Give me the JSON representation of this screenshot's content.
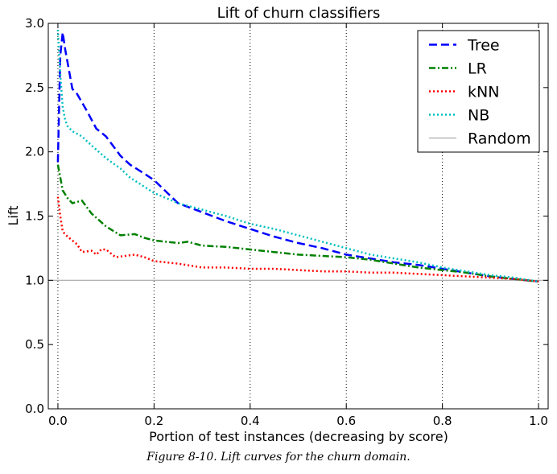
{
  "caption": "Figure 8-10. Lift curves for the churn domain.",
  "chart_data": {
    "type": "line",
    "title": "Lift of churn classifiers",
    "xlabel": "Portion of test instances (decreasing by score)",
    "ylabel": "Lift",
    "xlim": [
      -0.02,
      1.02
    ],
    "ylim": [
      0.0,
      3.0
    ],
    "xticks": [
      0.0,
      0.2,
      0.4,
      0.6,
      0.8,
      1.0
    ],
    "xtick_labels": [
      "0.0",
      "0.2",
      "0.4",
      "0.6",
      "0.8",
      "1.0"
    ],
    "yticks": [
      0.0,
      0.5,
      1.0,
      1.5,
      2.0,
      2.5,
      3.0
    ],
    "ytick_labels": [
      "0.0",
      "0.5",
      "1.0",
      "1.5",
      "2.0",
      "2.5",
      "3.0"
    ],
    "grid": "vertical dotted at x ticks",
    "legend_position": "top-right",
    "series": [
      {
        "name": "Tree",
        "color": "#0000ff",
        "style": "dashed",
        "x": [
          0.0,
          0.005,
          0.01,
          0.015,
          0.03,
          0.04,
          0.06,
          0.08,
          0.1,
          0.13,
          0.15,
          0.18,
          0.2,
          0.25,
          0.3,
          0.35,
          0.4,
          0.45,
          0.5,
          0.55,
          0.6,
          0.65,
          0.7,
          0.75,
          0.8,
          0.85,
          0.9,
          0.95,
          1.0
        ],
        "y": [
          1.92,
          2.75,
          2.93,
          2.8,
          2.49,
          2.45,
          2.32,
          2.18,
          2.12,
          1.97,
          1.9,
          1.83,
          1.78,
          1.6,
          1.53,
          1.46,
          1.4,
          1.34,
          1.29,
          1.25,
          1.2,
          1.17,
          1.14,
          1.12,
          1.09,
          1.06,
          1.03,
          1.01,
          0.99
        ]
      },
      {
        "name": "LR",
        "color": "#008000",
        "style": "dashdot",
        "x": [
          0.0,
          0.005,
          0.01,
          0.02,
          0.03,
          0.05,
          0.07,
          0.1,
          0.13,
          0.16,
          0.18,
          0.2,
          0.25,
          0.27,
          0.3,
          0.35,
          0.4,
          0.45,
          0.5,
          0.55,
          0.6,
          0.65,
          0.7,
          0.75,
          0.8,
          0.85,
          0.9,
          0.95,
          1.0
        ],
        "y": [
          1.9,
          1.8,
          1.7,
          1.64,
          1.6,
          1.62,
          1.52,
          1.42,
          1.35,
          1.36,
          1.33,
          1.31,
          1.29,
          1.3,
          1.27,
          1.26,
          1.24,
          1.22,
          1.2,
          1.19,
          1.18,
          1.16,
          1.13,
          1.1,
          1.08,
          1.06,
          1.03,
          1.01,
          0.99
        ]
      },
      {
        "name": "kNN",
        "color": "#ff0000",
        "style": "dotted",
        "x": [
          0.0,
          0.005,
          0.01,
          0.02,
          0.04,
          0.05,
          0.07,
          0.08,
          0.09,
          0.1,
          0.12,
          0.14,
          0.16,
          0.18,
          0.2,
          0.25,
          0.3,
          0.35,
          0.4,
          0.45,
          0.5,
          0.55,
          0.6,
          0.65,
          0.7,
          0.75,
          0.8,
          0.85,
          0.9,
          0.95,
          1.0
        ],
        "y": [
          1.65,
          1.5,
          1.38,
          1.34,
          1.28,
          1.22,
          1.23,
          1.2,
          1.24,
          1.24,
          1.18,
          1.19,
          1.2,
          1.18,
          1.15,
          1.13,
          1.1,
          1.1,
          1.09,
          1.09,
          1.08,
          1.07,
          1.07,
          1.06,
          1.06,
          1.05,
          1.04,
          1.03,
          1.02,
          1.01,
          0.99
        ]
      },
      {
        "name": "NB",
        "color": "#00bfbf",
        "style": "dotted",
        "x": [
          0.0,
          0.005,
          0.01,
          0.015,
          0.02,
          0.03,
          0.05,
          0.07,
          0.1,
          0.13,
          0.15,
          0.2,
          0.25,
          0.3,
          0.35,
          0.4,
          0.45,
          0.5,
          0.55,
          0.6,
          0.65,
          0.7,
          0.75,
          0.8,
          0.85,
          0.9,
          0.95,
          1.0
        ],
        "y": [
          2.95,
          2.6,
          2.35,
          2.25,
          2.2,
          2.16,
          2.12,
          2.05,
          1.95,
          1.87,
          1.8,
          1.68,
          1.6,
          1.55,
          1.5,
          1.44,
          1.4,
          1.35,
          1.3,
          1.25,
          1.2,
          1.17,
          1.14,
          1.1,
          1.07,
          1.04,
          1.02,
          0.99
        ]
      },
      {
        "name": "Random",
        "color": "#999999",
        "style": "solid",
        "x": [
          -0.02,
          1.02
        ],
        "y": [
          1.0,
          1.0
        ]
      }
    ]
  }
}
